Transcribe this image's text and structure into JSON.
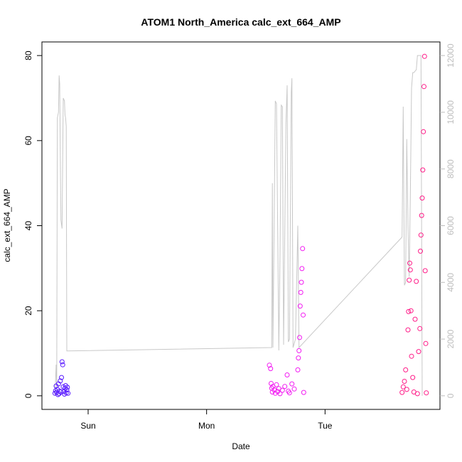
{
  "chart_data": {
    "type": "scatter",
    "title": "ATOM1 North_America calc_ext_664_AMP",
    "xlabel": "Date",
    "ylabel": "calc_ext_664_AMP",
    "x_ticks": [
      {
        "label": "Sun",
        "day": 1.0
      },
      {
        "label": "Mon",
        "day": 2.0
      },
      {
        "label": "Tue",
        "day": 3.0
      }
    ],
    "x_axis_unit": "days",
    "xlim": [
      0.61,
      3.97
    ],
    "ylim": [
      -3.2,
      83.2
    ],
    "y_ticks": [
      0,
      20,
      40,
      60,
      80
    ],
    "y2lim": [
      -480,
      12480
    ],
    "y2_ticks": [
      0,
      2000,
      4000,
      6000,
      8000,
      10000,
      12000
    ],
    "grid": false,
    "colors": {
      "axis": "#000000",
      "right_axis": "#bdbdbd",
      "line": "#c8c8c8",
      "points_early": "#5a1cff",
      "points_mid": "#f21cf2",
      "points_late": "#ff1c88"
    },
    "series": [
      {
        "axis": "right",
        "style": "line",
        "points": [
          [
            0.72,
            0
          ],
          [
            0.73,
            1100
          ],
          [
            0.735,
            300
          ],
          [
            0.74,
            9800
          ],
          [
            0.75,
            10000
          ],
          [
            0.755,
            11300
          ],
          [
            0.76,
            11000
          ],
          [
            0.77,
            6200
          ],
          [
            0.78,
            5900
          ],
          [
            0.79,
            10500
          ],
          [
            0.8,
            10400
          ],
          [
            0.805,
            9900
          ],
          [
            0.81,
            9800
          ],
          [
            0.815,
            9500
          ],
          [
            0.82,
            1580
          ],
          [
            2.55,
            1700
          ],
          [
            2.555,
            7500
          ],
          [
            2.56,
            1700
          ],
          [
            2.57,
            6000
          ],
          [
            2.58,
            10400
          ],
          [
            2.59,
            10300
          ],
          [
            2.6,
            5800
          ],
          [
            2.61,
            1600
          ],
          [
            2.62,
            5000
          ],
          [
            2.63,
            10250
          ],
          [
            2.64,
            10200
          ],
          [
            2.65,
            1800
          ],
          [
            2.67,
            9600
          ],
          [
            2.68,
            10950
          ],
          [
            2.69,
            1900
          ],
          [
            2.7,
            2000
          ],
          [
            2.715,
            10700
          ],
          [
            2.72,
            11200
          ],
          [
            2.73,
            1700
          ],
          [
            2.75,
            2000
          ],
          [
            2.77,
            6000
          ],
          [
            2.78,
            1700
          ],
          [
            3.65,
            5600
          ],
          [
            3.66,
            10200
          ],
          [
            3.67,
            3900
          ],
          [
            3.68,
            4000
          ],
          [
            3.69,
            9050
          ],
          [
            3.7,
            6000
          ],
          [
            3.71,
            4200
          ],
          [
            3.72,
            7000
          ],
          [
            3.73,
            10850
          ],
          [
            3.74,
            11400
          ],
          [
            3.75,
            11400
          ],
          [
            3.76,
            11450
          ],
          [
            3.77,
            11500
          ],
          [
            3.78,
            12000
          ],
          [
            3.8,
            12000
          ],
          [
            3.81,
            12000
          ],
          [
            3.82,
            0
          ]
        ]
      },
      {
        "axis": "left",
        "style": "points",
        "color": "#5a1cff",
        "points": [
          [
            0.72,
            0.6
          ],
          [
            0.725,
            1.2
          ],
          [
            0.73,
            2.3
          ],
          [
            0.735,
            0.8
          ],
          [
            0.74,
            1.5
          ],
          [
            0.745,
            0.3
          ],
          [
            0.75,
            2.8
          ],
          [
            0.755,
            0.5
          ],
          [
            0.76,
            1.1
          ],
          [
            0.765,
            3.5
          ],
          [
            0.77,
            0.9
          ],
          [
            0.775,
            4.3
          ],
          [
            0.78,
            8.0
          ],
          [
            0.785,
            7.3
          ],
          [
            0.79,
            2.1
          ],
          [
            0.795,
            1.0
          ],
          [
            0.8,
            0.4
          ],
          [
            0.805,
            1.8
          ],
          [
            0.81,
            2.4
          ],
          [
            0.815,
            0.7
          ],
          [
            0.82,
            1.4
          ],
          [
            0.825,
            2.0
          ],
          [
            0.83,
            0.6
          ]
        ]
      },
      {
        "axis": "left",
        "style": "points",
        "color": "#f21cf2",
        "points": [
          [
            2.53,
            7.2
          ],
          [
            2.54,
            6.4
          ],
          [
            2.545,
            2.9
          ],
          [
            2.55,
            1.8
          ],
          [
            2.555,
            0.9
          ],
          [
            2.56,
            2.2
          ],
          [
            2.57,
            1.4
          ],
          [
            2.58,
            0.6
          ],
          [
            2.59,
            2.6
          ],
          [
            2.6,
            1.0
          ],
          [
            2.61,
            1.7
          ],
          [
            2.62,
            0.5
          ],
          [
            2.64,
            1.3
          ],
          [
            2.66,
            2.2
          ],
          [
            2.68,
            4.9
          ],
          [
            2.69,
            1.1
          ],
          [
            2.7,
            0.7
          ],
          [
            2.72,
            2.8
          ],
          [
            2.74,
            1.6
          ],
          [
            2.77,
            6.1
          ],
          [
            2.775,
            8.9
          ],
          [
            2.78,
            10.6
          ],
          [
            2.785,
            13.7
          ],
          [
            2.79,
            21.1
          ],
          [
            2.795,
            24.3
          ],
          [
            2.8,
            26.7
          ],
          [
            2.805,
            29.9
          ],
          [
            2.81,
            34.6
          ],
          [
            2.815,
            19.0
          ],
          [
            2.82,
            0.8
          ]
        ]
      },
      {
        "axis": "left",
        "style": "points",
        "color": "#ff1c88",
        "points": [
          [
            3.65,
            0.8
          ],
          [
            3.66,
            2.1
          ],
          [
            3.67,
            3.4
          ],
          [
            3.68,
            6.1
          ],
          [
            3.69,
            1.5
          ],
          [
            3.7,
            15.5
          ],
          [
            3.705,
            19.8
          ],
          [
            3.71,
            27.2
          ],
          [
            3.715,
            31.2
          ],
          [
            3.72,
            29.6
          ],
          [
            3.725,
            20.0
          ],
          [
            3.73,
            9.3
          ],
          [
            3.74,
            4.3
          ],
          [
            3.75,
            0.9
          ],
          [
            3.76,
            18.0
          ],
          [
            3.77,
            26.9
          ],
          [
            3.78,
            0.5
          ],
          [
            3.79,
            10.4
          ],
          [
            3.8,
            15.8
          ],
          [
            3.805,
            34.0
          ],
          [
            3.81,
            37.8
          ],
          [
            3.815,
            42.4
          ],
          [
            3.82,
            46.5
          ],
          [
            3.825,
            53.1
          ],
          [
            3.83,
            62.1
          ],
          [
            3.835,
            72.7
          ],
          [
            3.84,
            79.8
          ],
          [
            3.845,
            29.4
          ],
          [
            3.85,
            12.3
          ],
          [
            3.855,
            0.7
          ]
        ]
      }
    ]
  }
}
